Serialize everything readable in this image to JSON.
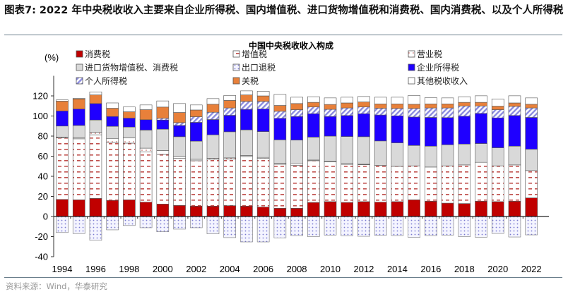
{
  "figure_title": "图表7:   2022 年中央税收收入主要来自企业所得税、国内增值税、进口货物增值税和消费税、国内消费税、以及个人所得税",
  "source": "资料来源：Wind，华泰研究",
  "chart_data": {
    "type": "bar",
    "stacked": true,
    "title": "中国中央税收收入构成",
    "ylabel": "(%)",
    "ylim": [
      -40,
      140
    ],
    "yticks": [
      -40,
      -20,
      0,
      20,
      40,
      60,
      80,
      100,
      120
    ],
    "grid": false,
    "legend_placement": "top",
    "categories": [
      1994,
      1995,
      1996,
      1997,
      1998,
      1999,
      2000,
      2001,
      2002,
      2003,
      2004,
      2005,
      2006,
      2007,
      2008,
      2009,
      2010,
      2011,
      2012,
      2013,
      2014,
      2015,
      2016,
      2017,
      2018,
      2019,
      2020,
      2021,
      2022
    ],
    "xtick_labels": [
      "1994",
      "1996",
      "1998",
      "2000",
      "2002",
      "2004",
      "2006",
      "2008",
      "2010",
      "2012",
      "2014",
      "2016",
      "2018",
      "2020",
      "2022"
    ],
    "series": [
      {
        "name": "消费税",
        "color": "#c00000",
        "pattern": "solid",
        "values": [
          17,
          16.6,
          18,
          16,
          16.6,
          14.3,
          12.4,
          11,
          10.3,
          10.3,
          10.8,
          10.3,
          9.4,
          8.2,
          8.2,
          14,
          14.8,
          14,
          14.8,
          14.3,
          14.8,
          16.6,
          15.2,
          13.3,
          12.9,
          15.2,
          14.8,
          15.2,
          18.5
        ]
      },
      {
        "name": "增值税",
        "color": "#c0504d",
        "pattern": "dashes",
        "values": [
          61.2,
          60.7,
          63.3,
          57.8,
          56.4,
          50.1,
          49.4,
          46.8,
          45.2,
          46.7,
          46.3,
          49.4,
          48.4,
          43.8,
          42.6,
          41.5,
          39.5,
          38,
          36.7,
          36.5,
          35.1,
          33.8,
          34,
          37.1,
          38.4,
          38.7,
          35.6,
          36.1,
          27.2
        ]
      },
      {
        "name": "营业税",
        "color": "#ffffff",
        "pattern": "dots",
        "values": [
          0.8,
          0.9,
          2.3,
          3.9,
          5.2,
          3.6,
          3.8,
          1.9,
          1.4,
          0.8,
          1.2,
          1,
          1,
          0.9,
          1.7,
          0.7,
          0.5,
          0.5,
          0.5,
          0,
          0,
          0,
          0,
          0,
          0,
          0,
          0,
          0,
          0
        ]
      },
      {
        "name": "进口货物增值税、消费税",
        "color": "#d9d9d9",
        "pattern": "solid",
        "values": [
          11,
          12.4,
          12.4,
          12,
          10.8,
          18,
          21.3,
          19.7,
          18.1,
          23.5,
          26,
          25.5,
          25.7,
          23.4,
          23.6,
          22.8,
          25.2,
          27.1,
          27.4,
          24.4,
          23.4,
          20.3,
          20.8,
          21,
          20.8,
          18.7,
          18,
          18.7,
          21.3
        ]
      },
      {
        "name": "企业所得税",
        "color": "#1f00ff",
        "pattern": "solid",
        "values": [
          15,
          16.4,
          16.4,
          9.8,
          8.9,
          10.3,
          9.1,
          11.2,
          18.7,
          15.2,
          16.4,
          20.4,
          22.5,
          21.4,
          23.4,
          23.3,
          19.5,
          20.9,
          22.9,
          25.8,
          26.9,
          28.3,
          28.6,
          27,
          27.7,
          30,
          29.7,
          30.5,
          31.6
        ]
      },
      {
        "name": "个人所得税",
        "color": "#8e8ee0",
        "pattern": "hatch",
        "values": [
          0,
          0,
          0,
          0,
          0,
          0,
          1.7,
          2.8,
          5.6,
          7.2,
          7.3,
          7.9,
          7.5,
          7,
          6.8,
          6.7,
          7.1,
          7.5,
          6.7,
          6.7,
          7.3,
          8.5,
          9.4,
          9.6,
          10.2,
          7.4,
          8.2,
          9.1,
          9.4
        ]
      },
      {
        "name": "关税",
        "color": "#e8803a",
        "pattern": "solid",
        "values": [
          9.8,
          10,
          8.6,
          8.2,
          6.3,
          10,
          11.2,
          10.1,
          6.7,
          8,
          7.5,
          6.5,
          5.5,
          5.8,
          6.1,
          4.6,
          4.9,
          5,
          5,
          4.3,
          4.5,
          4.2,
          4,
          4,
          3.6,
          3.6,
          3.5,
          3.4,
          3.7
        ]
      },
      {
        "name": "其他税收收入",
        "color": "#ffffff",
        "pattern": "solid",
        "values": [
          1.2,
          0.6,
          3,
          5.3,
          4.8,
          4.7,
          6.1,
          8.9,
          5,
          5.6,
          4.9,
          4,
          4.6,
          11,
          6.3,
          5.6,
          6.5,
          5.7,
          5.4,
          6.7,
          6.7,
          8.7,
          6.3,
          6,
          5.6,
          6.5,
          7.2,
          7.1,
          6.3
        ]
      },
      {
        "name": "出口退税",
        "color": "#7a7ad0",
        "pattern": "dots-blue",
        "values": [
          -16,
          -17,
          -23.7,
          -13.3,
          -9,
          -11.2,
          -15.2,
          -12.6,
          -11.2,
          -17.3,
          -21,
          -25.3,
          -25.3,
          -21.3,
          -19,
          -20,
          -18.5,
          -19.2,
          -19.7,
          -18.7,
          -19,
          -20.8,
          -19,
          -18.5,
          -20,
          -20.6,
          -16.9,
          -20.4,
          -18.3
        ]
      }
    ],
    "legend_order": [
      "消费税",
      "增值税",
      "营业税",
      "进口货物增值税、消费税",
      "出口退税",
      "企业所得税",
      "个人所得税",
      "关税",
      "其他税收收入"
    ]
  }
}
